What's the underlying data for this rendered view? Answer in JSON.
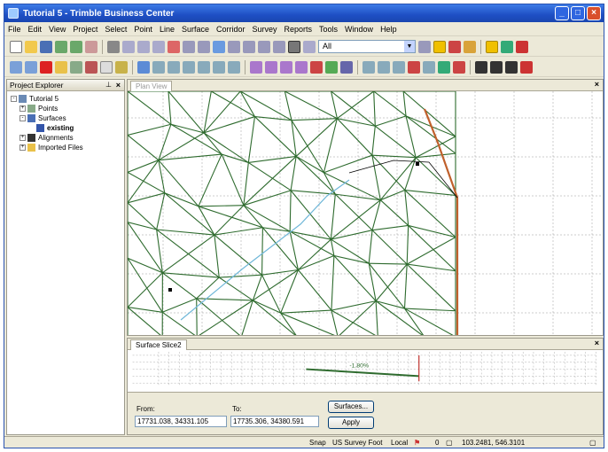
{
  "window": {
    "title": "Tutorial 5 - Trimble Business Center"
  },
  "menu": [
    "File",
    "Edit",
    "View",
    "Project",
    "Select",
    "Point",
    "Line",
    "Surface",
    "Corridor",
    "Survey",
    "Reports",
    "Tools",
    "Window",
    "Help"
  ],
  "toolbar": {
    "filter_value": "All"
  },
  "explorer": {
    "title": "Project Explorer",
    "items": [
      {
        "label": "Tutorial 5",
        "level": 0,
        "exp": "-"
      },
      {
        "label": "Points",
        "level": 1,
        "exp": "+"
      },
      {
        "label": "Surfaces",
        "level": 1,
        "exp": "-"
      },
      {
        "label": "existing",
        "level": 2,
        "exp": ""
      },
      {
        "label": "Alignments",
        "level": 1,
        "exp": "+"
      },
      {
        "label": "Imported Files",
        "level": 1,
        "exp": "+"
      }
    ]
  },
  "plan_view": {
    "tab_label": "Plan View"
  },
  "slice": {
    "tab_label": "Surface Slice2",
    "slope_label": "-1.80%",
    "from_label": "From:",
    "to_label": "To:",
    "from_value": "17731.038, 34331.105",
    "to_value": "17735.306, 34380.591",
    "surfaces_button": "Surfaces...",
    "apply_button": "Apply"
  },
  "status": {
    "snap": "Snap",
    "units": "US Survey Foot",
    "local": "Local",
    "count": "0",
    "coords": "103.2481, 546.3101"
  },
  "colors": {
    "tin_edges": "#2e6b2e",
    "alignment": "#6fb7d8",
    "boundary": "#c0602c"
  }
}
